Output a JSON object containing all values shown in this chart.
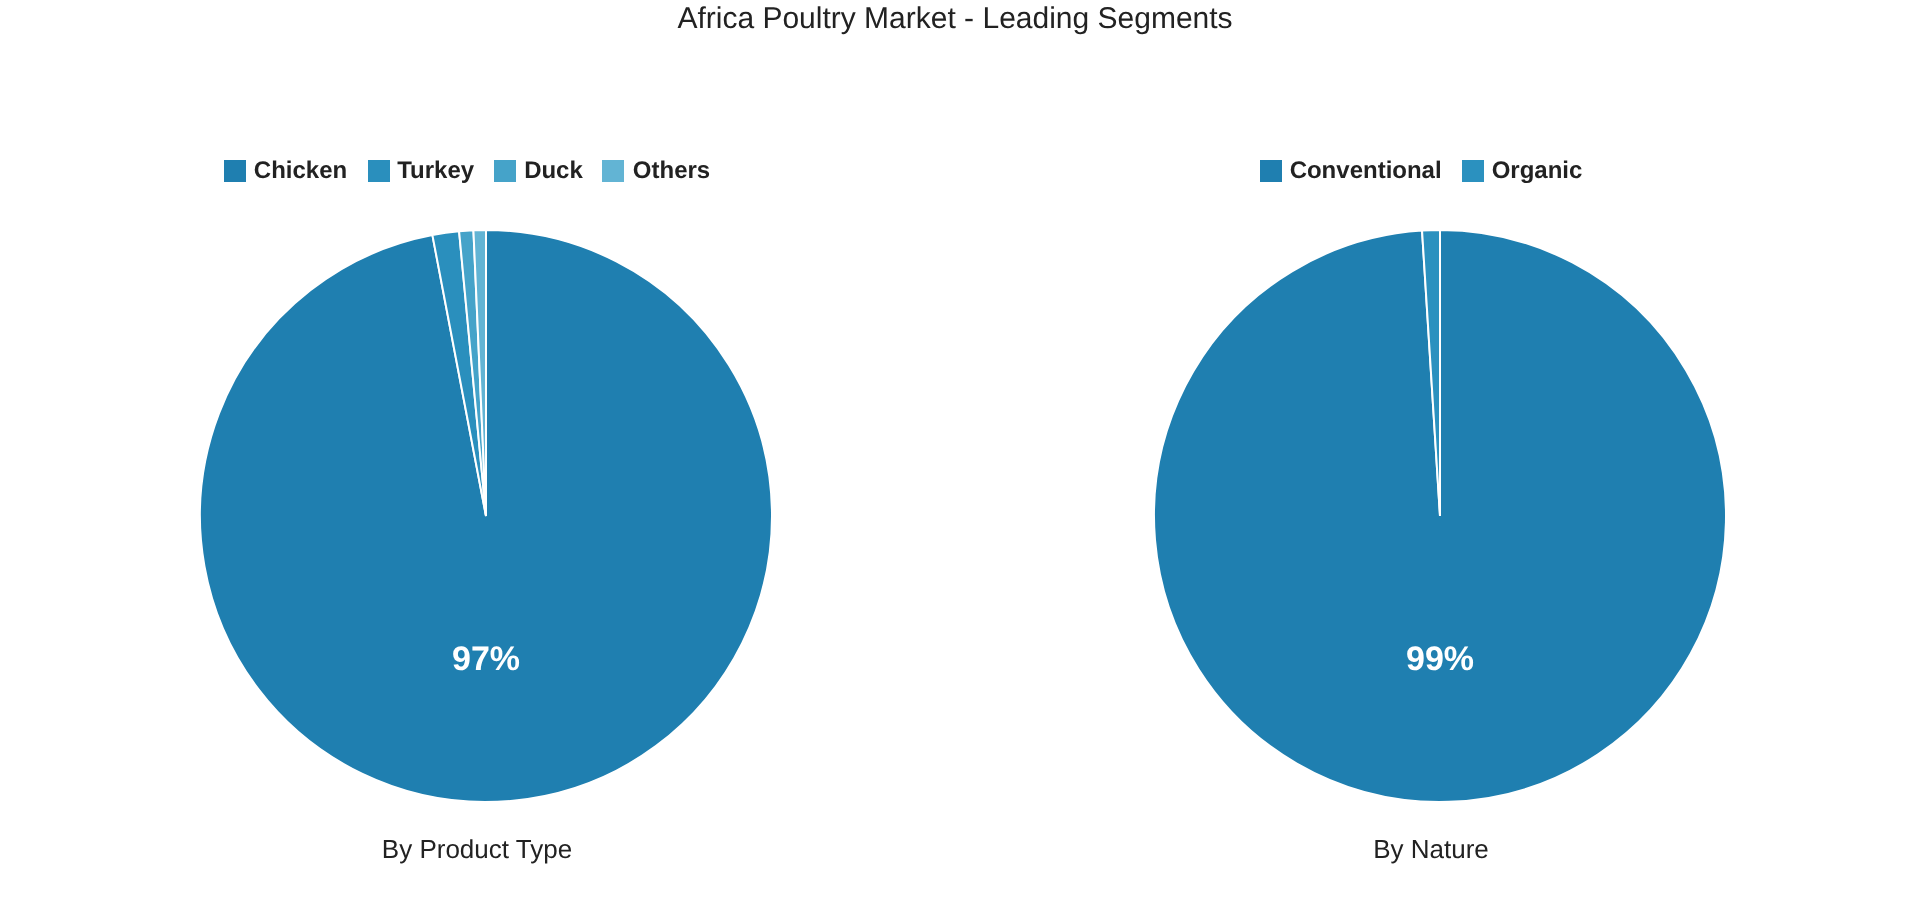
{
  "chart_data": [
    {
      "type": "pie",
      "title": "Africa Poultry Market - Leading Segments",
      "xlabel": "By Product Type",
      "categories": [
        "Chicken",
        "Turkey",
        "Duck",
        "Others"
      ],
      "values": [
        97,
        1.5,
        0.8,
        0.7
      ],
      "colors": [
        "#1f7fb0",
        "#2a8fbd",
        "#45a3c9",
        "#62b4d4"
      ],
      "value_labels": [
        "97%",
        null,
        null,
        null
      ],
      "legend": "top"
    },
    {
      "type": "pie",
      "xlabel": "By Nature",
      "categories": [
        "Conventional",
        "Organic"
      ],
      "values": [
        99,
        1
      ],
      "colors": [
        "#1f7fb0",
        "#2b91bf"
      ],
      "value_labels": [
        "99%",
        null
      ],
      "legend": "top"
    }
  ]
}
